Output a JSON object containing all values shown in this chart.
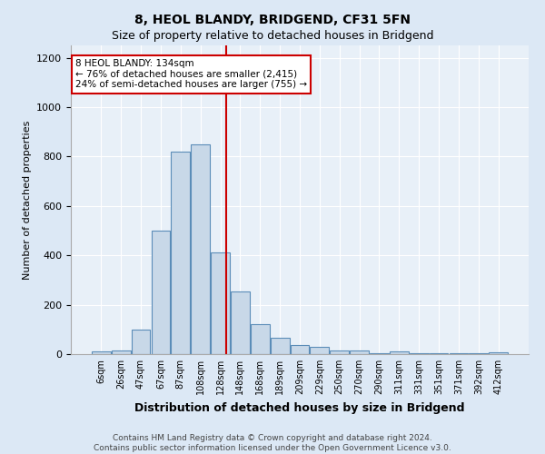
{
  "title": "8, HEOL BLANDY, BRIDGEND, CF31 5FN",
  "subtitle": "Size of property relative to detached houses in Bridgend",
  "xlabel": "Distribution of detached houses by size in Bridgend",
  "ylabel": "Number of detached properties",
  "bin_labels": [
    "6sqm",
    "26sqm",
    "47sqm",
    "67sqm",
    "87sqm",
    "108sqm",
    "128sqm",
    "148sqm",
    "168sqm",
    "189sqm",
    "209sqm",
    "229sqm",
    "250sqm",
    "270sqm",
    "290sqm",
    "311sqm",
    "331sqm",
    "351sqm",
    "371sqm",
    "392sqm",
    "412sqm"
  ],
  "bar_heights": [
    10,
    15,
    100,
    500,
    820,
    850,
    410,
    255,
    120,
    68,
    38,
    30,
    15,
    13,
    5,
    10,
    5,
    5,
    5,
    5,
    7
  ],
  "bar_color": "#c8d8e8",
  "bar_edge_color": "#5b8db8",
  "annotation_text": "8 HEOL BLANDY: 134sqm\n← 76% of detached houses are smaller (2,415)\n24% of semi-detached houses are larger (755) →",
  "annotation_box_color": "#ffffff",
  "annotation_box_edge": "#cc0000",
  "vline_color": "#cc0000",
  "ylim": [
    0,
    1250
  ],
  "yticks": [
    0,
    200,
    400,
    600,
    800,
    1000,
    1200
  ],
  "footer_text": "Contains HM Land Registry data © Crown copyright and database right 2024.\nContains public sector information licensed under the Open Government Licence v3.0.",
  "background_color": "#dce8f5",
  "plot_bg_color": "#e8f0f8",
  "title_fontsize": 10,
  "subtitle_fontsize": 9
}
